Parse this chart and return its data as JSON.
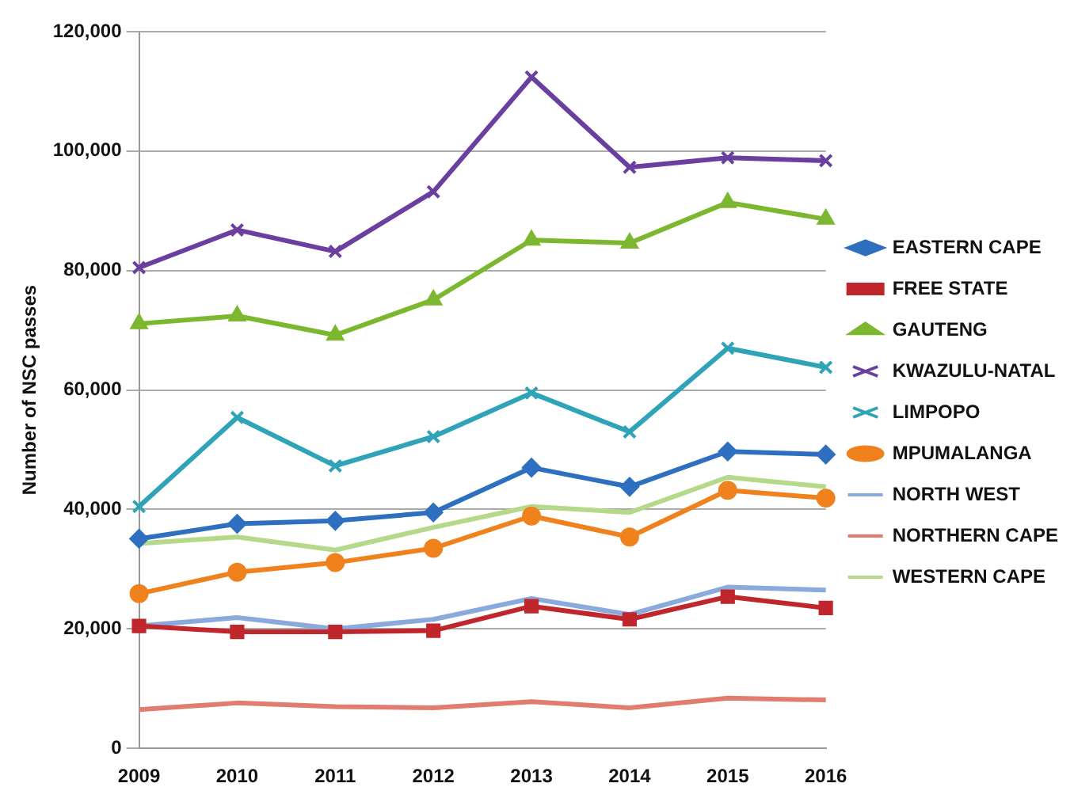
{
  "chart_data": {
    "type": "line",
    "ylabel": "Number of NSC passes",
    "categories": [
      "2009",
      "2010",
      "2011",
      "2012",
      "2013",
      "2014",
      "2015",
      "2016"
    ],
    "ylim": [
      0,
      120000
    ],
    "yticks": [
      {
        "value": 0,
        "label": "0"
      },
      {
        "value": 20000,
        "label": "20,000"
      },
      {
        "value": 40000,
        "label": "40,000"
      },
      {
        "value": 60000,
        "label": "60,000"
      },
      {
        "value": 80000,
        "label": "80,000"
      },
      {
        "value": 100000,
        "label": "100,000"
      },
      {
        "value": 120000,
        "label": "120,000"
      }
    ],
    "grid": "y",
    "legend": "right",
    "line_style": "solid",
    "series": [
      {
        "name": "EASTERN CAPE",
        "color": "#2e6fbf",
        "marker": "diamond",
        "values": [
          35100,
          37600,
          38100,
          39500,
          47000,
          43800,
          49700,
          49200
        ]
      },
      {
        "name": "FREE STATE",
        "color": "#c0272d",
        "marker": "square",
        "values": [
          20500,
          19500,
          19500,
          19700,
          23800,
          21600,
          25400,
          23500
        ]
      },
      {
        "name": "GAUTENG",
        "color": "#7cb82f",
        "marker": "triangle",
        "values": [
          71100,
          72400,
          69200,
          75100,
          85100,
          84600,
          91400,
          88600
        ]
      },
      {
        "name": "KWAZULU-NATAL",
        "color": "#6b3fa0",
        "marker": "cross",
        "values": [
          80500,
          86800,
          83200,
          93200,
          112400,
          97300,
          98900,
          98400
        ]
      },
      {
        "name": "LIMPOPO",
        "color": "#2fa3b8",
        "marker": "cross",
        "values": [
          40500,
          55400,
          47300,
          52200,
          59500,
          53000,
          67000,
          63800
        ]
      },
      {
        "name": "MPUMALANGA",
        "color": "#f0821e",
        "marker": "circle",
        "values": [
          25900,
          29500,
          31100,
          33500,
          38900,
          35400,
          43200,
          41900
        ]
      },
      {
        "name": "NORTH WEST",
        "color": "#8aa9dc",
        "marker": "none",
        "values": [
          20500,
          21900,
          20000,
          21600,
          25100,
          22400,
          27000,
          26500
        ]
      },
      {
        "name": "NORTHERN CAPE",
        "color": "#e07c70",
        "marker": "none",
        "values": [
          6500,
          7600,
          7000,
          6800,
          7800,
          6800,
          8400,
          8100
        ]
      },
      {
        "name": "WESTERN CAPE",
        "color": "#b5d98a",
        "marker": "none",
        "values": [
          34300,
          35400,
          33200,
          37000,
          40500,
          39500,
          45400,
          43800
        ]
      }
    ]
  }
}
